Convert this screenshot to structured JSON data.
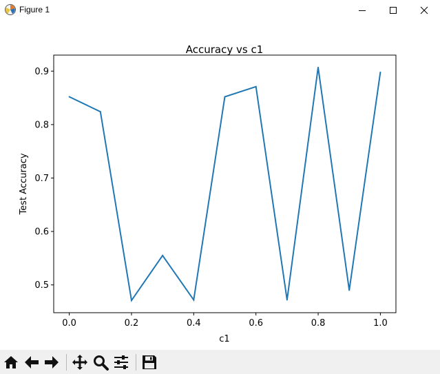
{
  "window": {
    "title": "Figure 1",
    "app_icon": "matplotlib-figure-icon",
    "controls": [
      "minimize-icon",
      "maximize-icon",
      "close-icon"
    ]
  },
  "toolbar": {
    "buttons": [
      {
        "name": "home",
        "icon": "home-icon"
      },
      {
        "name": "back",
        "icon": "arrow-left-icon"
      },
      {
        "name": "forward",
        "icon": "arrow-right-icon"
      },
      {
        "name": "pan",
        "icon": "move-icon"
      },
      {
        "name": "zoom",
        "icon": "magnifier-icon"
      },
      {
        "name": "configure-subplots",
        "icon": "sliders-icon"
      },
      {
        "name": "save",
        "icon": "floppy-disk-icon"
      }
    ]
  },
  "chart_data": {
    "type": "line",
    "title": "Accuracy vs c1",
    "xlabel": "c1",
    "ylabel": "Test Accuracy",
    "x": [
      0.0,
      0.1,
      0.2,
      0.3,
      0.4,
      0.5,
      0.6,
      0.7,
      0.8,
      0.9,
      1.0
    ],
    "series": [
      {
        "values": [
          0.852,
          0.824,
          0.471,
          0.555,
          0.472,
          0.852,
          0.871,
          0.472,
          0.907,
          0.49,
          0.898
        ]
      }
    ],
    "xticks": [
      "0.0",
      "0.2",
      "0.4",
      "0.6",
      "0.8",
      "1.0"
    ],
    "yticks": [
      "0.5",
      "0.6",
      "0.7",
      "0.8",
      "0.9"
    ],
    "xlim": [
      -0.05,
      1.05
    ],
    "ylim": [
      0.448,
      0.93
    ],
    "grid": false,
    "line_color": "#1f77b4"
  }
}
